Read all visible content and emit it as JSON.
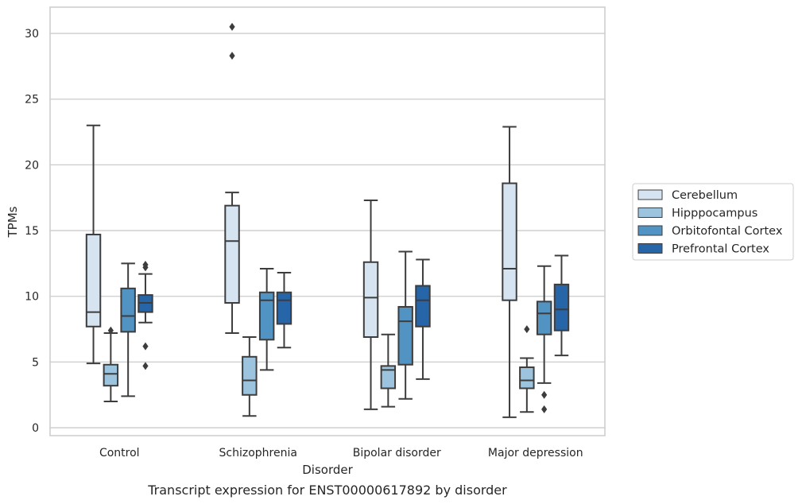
{
  "caption": "Transcript expression for ENST00000617892 by disorder",
  "chart_data": {
    "type": "box",
    "title": "",
    "xlabel": "Disorder",
    "ylabel": "TPMs",
    "ylim": [
      -0.6,
      32.0
    ],
    "yticks": [
      0,
      5,
      10,
      15,
      20,
      25,
      30
    ],
    "grid": "horizontal",
    "legend_position": "right",
    "categories": [
      "Control",
      "Schizophrenia",
      "Bipolar disorder",
      "Major depression"
    ],
    "series": [
      {
        "name": "Cerebellum",
        "color": "#d6e4f2",
        "boxes": [
          {
            "whislo": 4.9,
            "q1": 7.7,
            "med": 8.8,
            "q3": 14.7,
            "whishi": 23.0,
            "fliers": []
          },
          {
            "whislo": 7.2,
            "q1": 9.5,
            "med": 14.2,
            "q3": 16.9,
            "whishi": 17.9,
            "fliers": [
              28.3,
              30.5
            ]
          },
          {
            "whislo": 1.4,
            "q1": 6.9,
            "med": 9.9,
            "q3": 12.6,
            "whishi": 17.3,
            "fliers": []
          },
          {
            "whislo": 0.8,
            "q1": 9.7,
            "med": 12.1,
            "q3": 18.6,
            "whishi": 22.9,
            "fliers": []
          }
        ]
      },
      {
        "name": "Hipppocampus",
        "color": "#9dc4df",
        "boxes": [
          {
            "whislo": 2.0,
            "q1": 3.2,
            "med": 4.1,
            "q3": 4.8,
            "whishi": 7.2,
            "fliers": [
              7.4
            ]
          },
          {
            "whislo": 0.9,
            "q1": 2.5,
            "med": 3.6,
            "q3": 5.4,
            "whishi": 6.9,
            "fliers": []
          },
          {
            "whislo": 1.6,
            "q1": 3.0,
            "med": 4.4,
            "q3": 4.7,
            "whishi": 7.1,
            "fliers": []
          },
          {
            "whislo": 1.2,
            "q1": 3.0,
            "med": 3.6,
            "q3": 4.6,
            "whishi": 5.3,
            "fliers": [
              7.5
            ]
          }
        ]
      },
      {
        "name": "Orbitofontal Cortex",
        "color": "#5193c2",
        "boxes": [
          {
            "whislo": 2.4,
            "q1": 7.3,
            "med": 8.5,
            "q3": 10.6,
            "whishi": 12.5,
            "fliers": []
          },
          {
            "whislo": 4.4,
            "q1": 6.7,
            "med": 9.7,
            "q3": 10.3,
            "whishi": 12.1,
            "fliers": []
          },
          {
            "whislo": 2.2,
            "q1": 4.8,
            "med": 8.1,
            "q3": 9.2,
            "whishi": 13.4,
            "fliers": []
          },
          {
            "whislo": 3.4,
            "q1": 7.1,
            "med": 8.7,
            "q3": 9.6,
            "whishi": 12.3,
            "fliers": [
              2.5,
              1.4
            ]
          }
        ]
      },
      {
        "name": "Prefrontal Cortex",
        "color": "#2565a8",
        "boxes": [
          {
            "whislo": 8.0,
            "q1": 8.8,
            "med": 9.5,
            "q3": 10.1,
            "whishi": 11.7,
            "fliers": [
              12.2,
              12.4,
              6.2,
              4.7
            ]
          },
          {
            "whislo": 6.1,
            "q1": 7.9,
            "med": 9.7,
            "q3": 10.3,
            "whishi": 11.8,
            "fliers": []
          },
          {
            "whislo": 3.7,
            "q1": 7.7,
            "med": 9.7,
            "q3": 10.8,
            "whishi": 12.8,
            "fliers": []
          },
          {
            "whislo": 5.5,
            "q1": 7.4,
            "med": 9.0,
            "q3": 10.9,
            "whishi": 13.1,
            "fliers": []
          }
        ]
      }
    ]
  }
}
